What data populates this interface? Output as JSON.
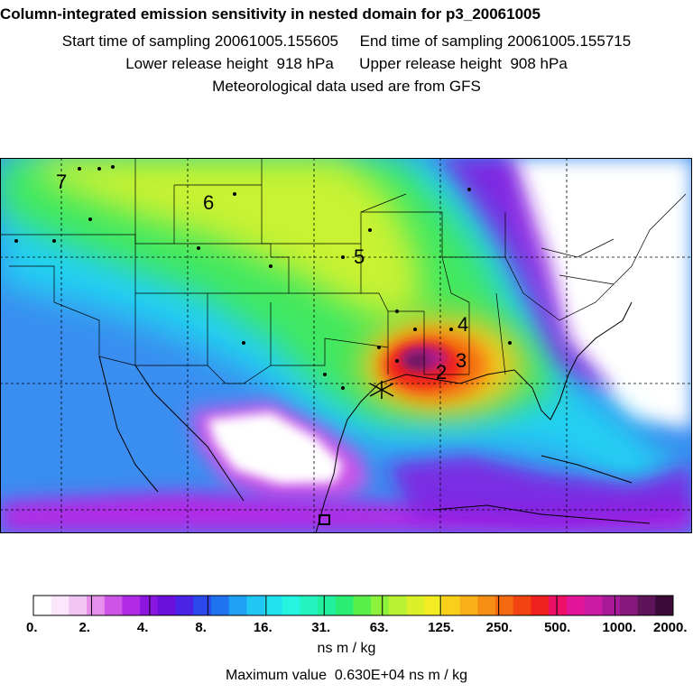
{
  "header": {
    "title": "Column-integrated emission sensitivity in nested domain for p3_20061005",
    "start_label": "Start time of sampling 20061005.155605",
    "end_label": "End time of sampling 20061005.155715",
    "lower_release": "Lower release height  918 hPa",
    "upper_release": "Upper release height  908 hPa",
    "met_data": "Meteorological data used are from GFS"
  },
  "map": {
    "labels": [
      "7",
      "6",
      "5",
      "4",
      "3",
      "2"
    ]
  },
  "colorbar": {
    "tick_labels": [
      "0.",
      "2.",
      "4.",
      "8.",
      "16.",
      "31.",
      "63.",
      "125.",
      "250.",
      "500.",
      "1000.",
      "2000."
    ],
    "colors": [
      "#ffffff",
      "#fbe6fb",
      "#f2c4f2",
      "#e690ec",
      "#cc55e8",
      "#b02ae6",
      "#8a16e0",
      "#6a10dc",
      "#4a24e4",
      "#2a48ec",
      "#1f73f0",
      "#1ea0f4",
      "#20c6f4",
      "#22e2f0",
      "#24f4e0",
      "#24f4c0",
      "#22f09e",
      "#2aee74",
      "#5af04a",
      "#8cf23a",
      "#b8f232",
      "#dcf02a",
      "#f4ec22",
      "#f8d01c",
      "#f8b018",
      "#f68e14",
      "#f46a10",
      "#f24410",
      "#f0201e",
      "#ec1066",
      "#e21498",
      "#ca1aa6",
      "#a81a9a",
      "#86187e",
      "#5e1458",
      "#3a0a38"
    ],
    "units": "ns m / kg"
  },
  "footer": {
    "max_value": "Maximum value  0.630E+04 ns m / kg"
  },
  "colors": {
    "low": "#ffffff",
    "mid": "#22e2f0",
    "high": "#f0201e",
    "peak": "#5e1458"
  }
}
